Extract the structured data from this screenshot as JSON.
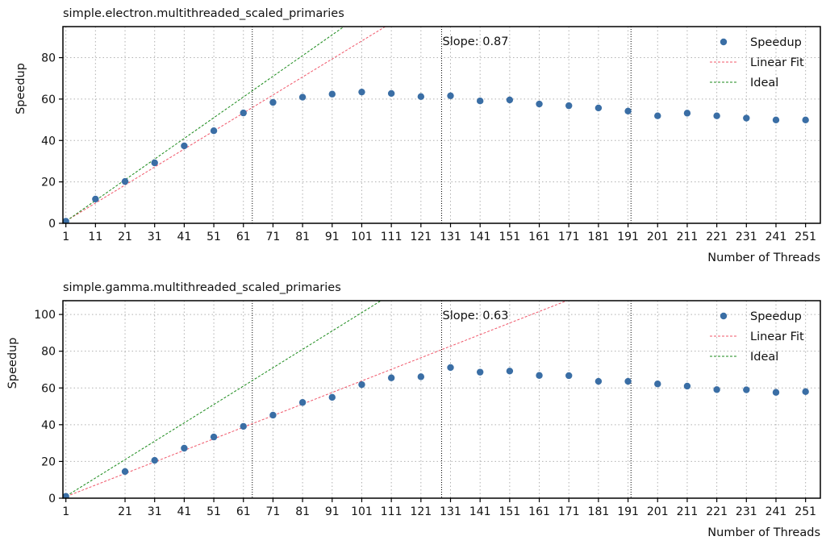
{
  "chart_data": [
    {
      "type": "scatter",
      "title": "simple.electron.multithreaded_scaled_primaries",
      "xlabel": "Number of Threads",
      "ylabel": "Speedup",
      "xlim": [
        0,
        256
      ],
      "ylim": [
        0,
        95
      ],
      "grid": true,
      "legend_placement": "top-right",
      "x_ticks": [
        1,
        11,
        21,
        31,
        41,
        51,
        61,
        71,
        81,
        91,
        101,
        111,
        121,
        131,
        141,
        151,
        161,
        171,
        181,
        191,
        201,
        211,
        221,
        231,
        241,
        251
      ],
      "y_ticks": [
        0,
        20,
        40,
        60,
        80
      ],
      "vlines": [
        64,
        128,
        192
      ],
      "annotation": "Slope: 0.87",
      "annotation_x": 128,
      "series": [
        {
          "name": "Speedup",
          "kind": "points",
          "color": "#3a6ea5",
          "x": [
            1,
            11,
            21,
            31,
            41,
            51,
            61,
            71,
            81,
            91,
            101,
            111,
            121,
            131,
            141,
            151,
            161,
            171,
            181,
            191,
            201,
            211,
            221,
            231,
            241,
            251
          ],
          "y": [
            1,
            11.7,
            20.2,
            29.2,
            37.4,
            44.7,
            53.3,
            58.4,
            60.9,
            62.4,
            63.4,
            62.7,
            61.2,
            61.6,
            59.1,
            59.6,
            57.6,
            56.8,
            55.7,
            54.2,
            51.9,
            53.2,
            51.9,
            50.8,
            49.9,
            49.9
          ]
        },
        {
          "name": "Linear Fit",
          "kind": "line",
          "color": "#f0576a",
          "slope": 0.87,
          "intercept": 0.2
        },
        {
          "name": "Ideal",
          "kind": "line",
          "color": "#1a8a1a",
          "slope": 1,
          "intercept": 0
        }
      ]
    },
    {
      "type": "scatter",
      "title": "simple.gamma.multithreaded_scaled_primaries",
      "xlabel": "Number of Threads",
      "ylabel": "Speedup",
      "xlim": [
        0,
        256
      ],
      "ylim": [
        0,
        107.5
      ],
      "grid": true,
      "legend_placement": "top-right",
      "x_ticks": [
        1,
        21,
        31,
        41,
        51,
        61,
        71,
        81,
        91,
        101,
        111,
        121,
        131,
        141,
        151,
        161,
        171,
        181,
        191,
        201,
        211,
        221,
        231,
        241,
        251
      ],
      "y_ticks": [
        0,
        20,
        40,
        60,
        80,
        100
      ],
      "vlines": [
        64,
        128,
        192
      ],
      "annotation": "Slope: 0.63",
      "annotation_x": 128,
      "series": [
        {
          "name": "Speedup",
          "kind": "points",
          "color": "#3a6ea5",
          "x": [
            1,
            21,
            31,
            41,
            51,
            61,
            71,
            81,
            91,
            101,
            111,
            121,
            131,
            141,
            151,
            161,
            171,
            181,
            191,
            201,
            211,
            221,
            231,
            241,
            251
          ],
          "y": [
            1,
            14.5,
            20.6,
            27.2,
            33.3,
            39.1,
            45.2,
            52.1,
            54.9,
            61.8,
            65.5,
            66.1,
            71.1,
            68.6,
            69.2,
            66.8,
            66.7,
            63.6,
            63.6,
            62.2,
            61.0,
            59.1,
            59.0,
            57.6,
            58.0
          ]
        },
        {
          "name": "Linear Fit",
          "kind": "line",
          "color": "#f0576a",
          "slope": 0.63,
          "intercept": 0.2
        },
        {
          "name": "Ideal",
          "kind": "line",
          "color": "#1a8a1a",
          "slope": 1,
          "intercept": 0
        }
      ]
    }
  ]
}
